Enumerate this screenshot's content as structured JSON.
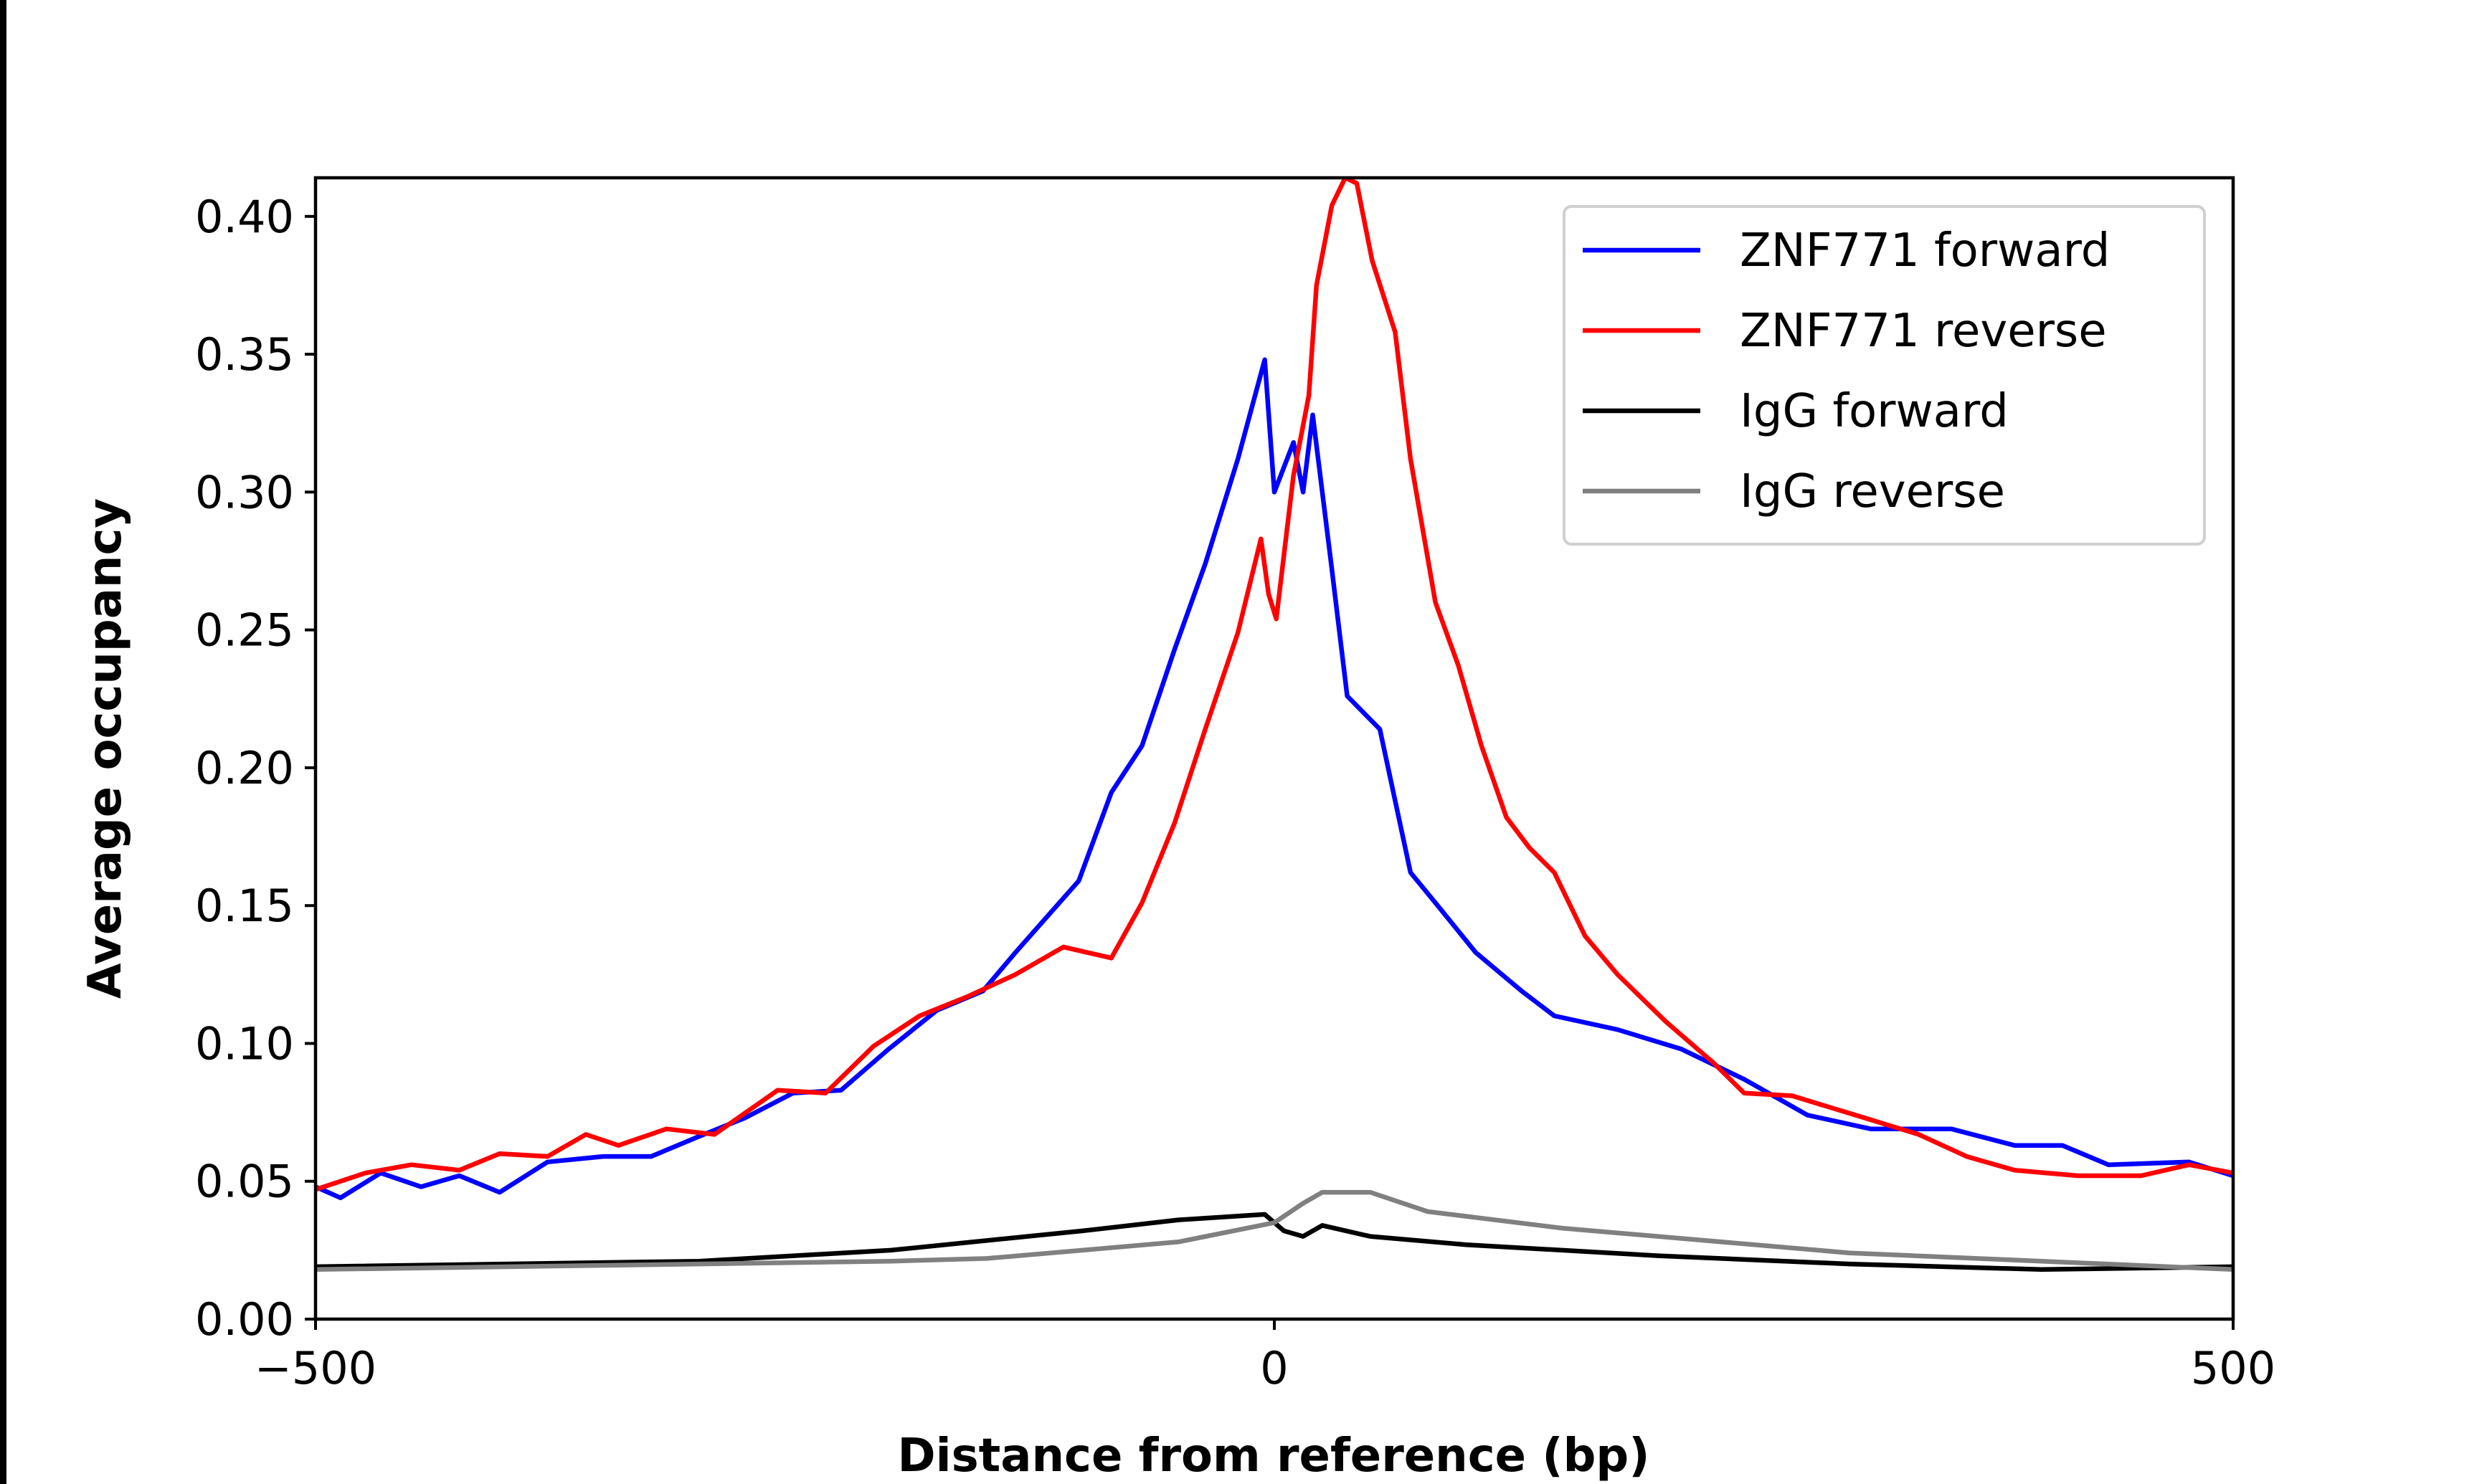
{
  "chart_data": {
    "type": "line",
    "title": "",
    "xlabel": "Distance from reference (bp)",
    "ylabel": "Average occupancy",
    "xlim": [
      -500,
      500
    ],
    "ylim": [
      0,
      0.414
    ],
    "xticks": [
      -500,
      0,
      500
    ],
    "xtick_labels": [
      "−500",
      "0",
      "500"
    ],
    "yticks": [
      0,
      0.05,
      0.1,
      0.15,
      0.2,
      0.25,
      0.3,
      0.35,
      0.4
    ],
    "ytick_labels": [
      "0.00",
      "0.05",
      "0.10",
      "0.15",
      "0.20",
      "0.25",
      "0.30",
      "0.35",
      "0.40"
    ],
    "grid": false,
    "legend_placement": "top-right",
    "series": [
      {
        "name": "ZNF771 forward",
        "color": "#0000ff",
        "x": [
          -500,
          -487,
          -466,
          -445,
          -425,
          -404,
          -379,
          -350,
          -325,
          -301,
          -276,
          -251,
          -226,
          -201,
          -176,
          -152,
          -135,
          -102,
          -85,
          -69,
          -52,
          -36,
          -19,
          -5,
          0,
          10,
          15,
          20,
          30,
          38,
          55,
          71,
          84,
          105,
          129,
          146,
          179,
          212,
          245,
          278,
          311,
          353,
          386,
          411,
          435,
          477,
          500
        ],
        "y": [
          0.048,
          0.044,
          0.053,
          0.048,
          0.052,
          0.046,
          0.057,
          0.059,
          0.059,
          0.066,
          0.073,
          0.082,
          0.083,
          0.098,
          0.112,
          0.119,
          0.133,
          0.159,
          0.191,
          0.208,
          0.243,
          0.274,
          0.312,
          0.348,
          0.3,
          0.318,
          0.3,
          0.328,
          0.272,
          0.226,
          0.214,
          0.162,
          0.151,
          0.133,
          0.119,
          0.11,
          0.105,
          0.098,
          0.087,
          0.074,
          0.069,
          0.069,
          0.063,
          0.063,
          0.056,
          0.057,
          0.052
        ]
      },
      {
        "name": "ZNF771 reverse",
        "color": "#ff0000",
        "x": [
          -500,
          -474,
          -450,
          -425,
          -404,
          -379,
          -359,
          -342,
          -317,
          -292,
          -259,
          -234,
          -209,
          -185,
          -160,
          -135,
          -110,
          -85,
          -69,
          -52,
          -36,
          -19,
          -7,
          -3,
          1,
          10,
          18,
          22,
          30,
          37,
          43,
          51,
          63,
          71,
          84,
          96,
          108,
          121,
          133,
          146,
          162,
          179,
          204,
          229,
          245,
          270,
          303,
          336,
          361,
          386,
          419,
          452,
          477,
          500
        ],
        "y": [
          0.047,
          0.053,
          0.056,
          0.054,
          0.06,
          0.059,
          0.067,
          0.063,
          0.069,
          0.067,
          0.083,
          0.082,
          0.099,
          0.11,
          0.117,
          0.125,
          0.135,
          0.131,
          0.151,
          0.18,
          0.214,
          0.249,
          0.283,
          0.263,
          0.254,
          0.306,
          0.335,
          0.375,
          0.404,
          0.414,
          0.412,
          0.384,
          0.358,
          0.312,
          0.26,
          0.237,
          0.208,
          0.182,
          0.171,
          0.162,
          0.139,
          0.125,
          0.108,
          0.093,
          0.082,
          0.081,
          0.074,
          0.067,
          0.059,
          0.054,
          0.052,
          0.052,
          0.056,
          0.053
        ]
      },
      {
        "name": "IgG forward",
        "color": "#000000",
        "x": [
          -500,
          -300,
          -200,
          -100,
          -50,
          -5,
          5,
          15,
          25,
          50,
          100,
          200,
          300,
          400,
          500
        ],
        "y": [
          0.019,
          0.021,
          0.025,
          0.032,
          0.036,
          0.038,
          0.032,
          0.03,
          0.034,
          0.03,
          0.027,
          0.023,
          0.02,
          0.018,
          0.019
        ]
      },
      {
        "name": "IgG reverse",
        "color": "#808080",
        "x": [
          -500,
          -300,
          -200,
          -150,
          -100,
          -50,
          0,
          15,
          25,
          50,
          80,
          150,
          200,
          300,
          400,
          500
        ],
        "y": [
          0.018,
          0.02,
          0.021,
          0.022,
          0.025,
          0.028,
          0.035,
          0.042,
          0.046,
          0.046,
          0.039,
          0.033,
          0.03,
          0.024,
          0.021,
          0.018
        ]
      }
    ]
  }
}
